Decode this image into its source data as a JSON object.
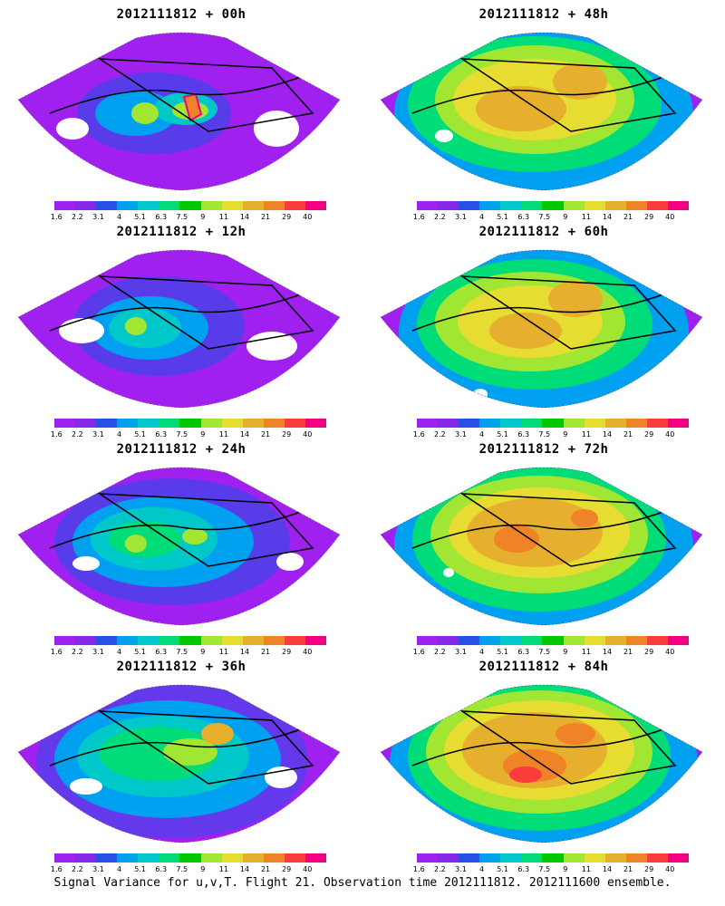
{
  "caption": "Signal Variance for u,v,T. Flight 21. Observation time 2012111812. 2012111600 ensemble.",
  "colorbar": {
    "ticks": [
      "1.6",
      "2.2",
      "3.1",
      "4",
      "5.1",
      "6.3",
      "7.5",
      "9",
      "11",
      "14",
      "21",
      "29",
      "40"
    ],
    "colors": [
      "#a020f0",
      "#8228e6",
      "#2850e6",
      "#00a0f0",
      "#00c8c8",
      "#00dc78",
      "#00c800",
      "#a0e632",
      "#e6dc32",
      "#e6af2d",
      "#f08228",
      "#fa3c3c",
      "#f00082"
    ]
  },
  "panels": [
    {
      "title": "2012111812 + 00h"
    },
    {
      "title": "2012111812 + 48h"
    },
    {
      "title": "2012111812 + 12h"
    },
    {
      "title": "2012111812 + 60h"
    },
    {
      "title": "2012111812 + 24h"
    },
    {
      "title": "2012111812 + 72h"
    },
    {
      "title": "2012111812 + 36h"
    },
    {
      "title": "2012111812 + 84h"
    }
  ]
}
